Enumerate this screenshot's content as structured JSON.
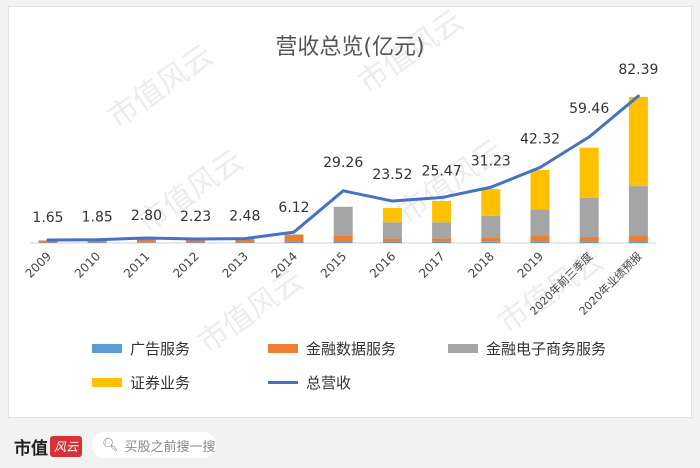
{
  "chart_data": {
    "type": "bar",
    "title": "营收总览(亿元)",
    "categories": [
      "2009",
      "2010",
      "2011",
      "2012",
      "2013",
      "2014",
      "2015",
      "2016",
      "2017",
      "2018",
      "2019",
      "2020年前三季度",
      "2020年业绩预报"
    ],
    "series": [
      {
        "name": "广告服务",
        "kind": "bar",
        "color": "#5b9bd5",
        "values": [
          0.3,
          0.3,
          0.4,
          0.3,
          0.3,
          0.6,
          0.8,
          0.6,
          0.6,
          0.7,
          0.9,
          0.9,
          0.9
        ]
      },
      {
        "name": "金融数据服务",
        "kind": "bar",
        "color": "#ed7d31",
        "values": [
          1.1,
          1.2,
          2.0,
          1.6,
          1.8,
          4.0,
          3.5,
          2.0,
          2.0,
          2.5,
          3.0,
          2.5,
          3.0
        ]
      },
      {
        "name": "金融电子商务服务",
        "kind": "bar",
        "color": "#a5a5a5",
        "values": [
          0.0,
          0.0,
          0.1,
          0.1,
          0.1,
          0.3,
          16.0,
          9.0,
          9.0,
          12.0,
          15.0,
          22.0,
          28.0
        ]
      },
      {
        "name": "证券业务",
        "kind": "bar",
        "color": "#ffc000",
        "values": [
          0,
          0,
          0,
          0,
          0,
          0,
          0,
          8.0,
          12.0,
          15.0,
          22.0,
          28.0,
          50.0
        ]
      },
      {
        "name": "总营收",
        "kind": "line",
        "color": "#4472c4",
        "values": [
          1.65,
          1.85,
          2.8,
          2.23,
          2.48,
          6.12,
          29.26,
          23.52,
          25.47,
          31.23,
          42.32,
          59.46,
          82.39
        ]
      }
    ],
    "data_labels": [
      "1.65",
      "1.85",
      "2.80",
      "2.23",
      "2.48",
      "6.12",
      "29.26",
      "23.52",
      "25.47",
      "31.23",
      "42.32",
      "59.46",
      "82.39"
    ],
    "ylim": [
      0,
      90
    ],
    "grid": false,
    "legend_position": "bottom"
  },
  "legend": [
    {
      "label": "广告服务",
      "color": "#5b9bd5",
      "kind": "bar"
    },
    {
      "label": "金融数据服务",
      "color": "#ed7d31",
      "kind": "bar"
    },
    {
      "label": "金融电子商务服务",
      "color": "#a5a5a5",
      "kind": "bar"
    },
    {
      "label": "证券业务",
      "color": "#ffc000",
      "kind": "bar"
    },
    {
      "label": "总营收",
      "color": "#4472c4",
      "kind": "line"
    }
  ],
  "watermark_text": "市值风云",
  "footer": {
    "brand": "市值",
    "brand_stamp": "风云",
    "search_placeholder": "买股之前搜一搜",
    "search_icon": "search-icon"
  }
}
